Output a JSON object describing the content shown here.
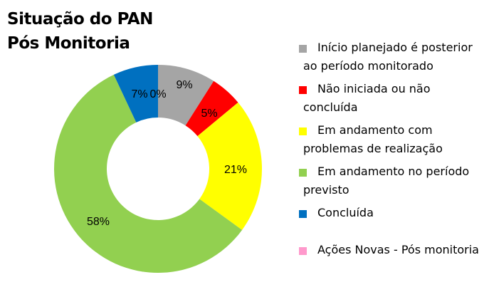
{
  "title": {
    "line1": "Situação do PAN",
    "line2": "Pós Monitoria"
  },
  "legend": [
    {
      "label": "Início planejado é posterior ao período monitorado",
      "color": "#A5A5A5"
    },
    {
      "label": "Não iniciada ou não concluída",
      "color": "#FF0000"
    },
    {
      "label": "Em andamento com problemas de realização",
      "color": "#FFFF00"
    },
    {
      "label": "Em andamento no período previsto",
      "color": "#92D050"
    },
    {
      "label": "Concluída",
      "color": "#0070C0"
    },
    {
      "label": "Ações Novas - Pós monitoria",
      "color": "#FF99CC"
    }
  ],
  "chart_data": {
    "type": "pie",
    "subtype": "doughnut",
    "title": "Situação do PAN Pós Monitoria",
    "categories": [
      "Início planejado é posterior ao período monitorado",
      "Não iniciada ou não concluída",
      "Em andamento com problemas de realização",
      "Em andamento no período previsto",
      "Concluída",
      "Ações Novas - Pós monitoria"
    ],
    "values": [
      9,
      5,
      21,
      58,
      7,
      0
    ],
    "unit": "%",
    "labels": [
      "9%",
      "5%",
      "21%",
      "58%",
      "7%",
      "0%"
    ],
    "colors": [
      "#A5A5A5",
      "#FF0000",
      "#FFFF00",
      "#92D050",
      "#0070C0",
      "#FF99CC"
    ],
    "legend_position": "right",
    "start_angle_deg": 0
  }
}
